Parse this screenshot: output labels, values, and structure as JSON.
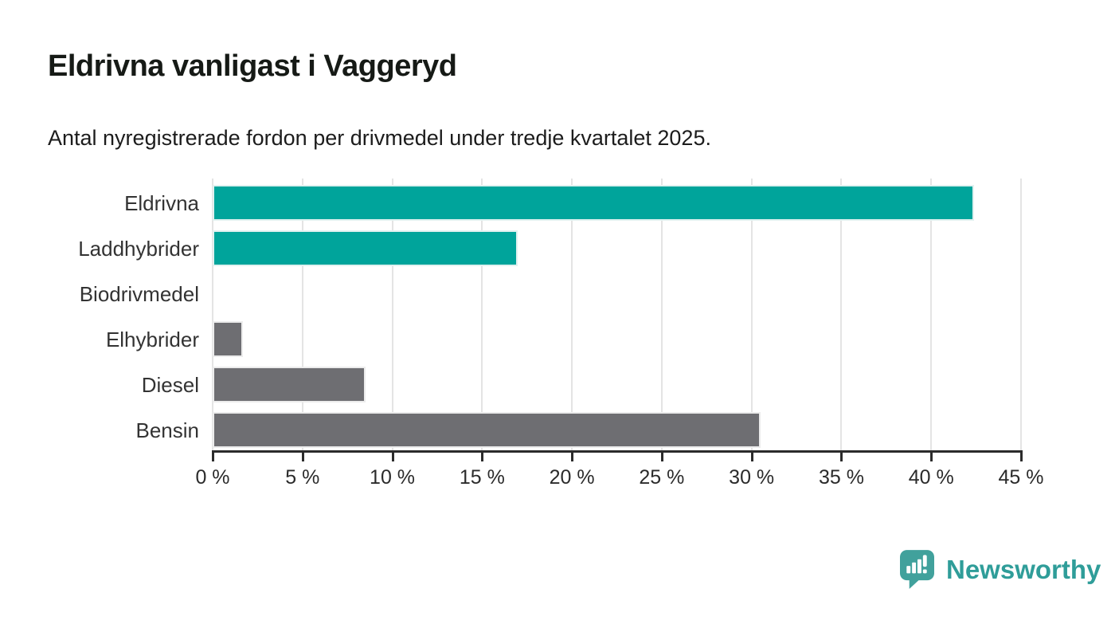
{
  "header": {
    "title": "Eldrivna vanligast i Vaggeryd",
    "subtitle": "Antal nyregistrerade fordon per drivmedel under tredje kvartalet 2025."
  },
  "chart_data": {
    "type": "bar",
    "orientation": "horizontal",
    "title": "Eldrivna vanligast i Vaggeryd",
    "subtitle": "Antal nyregistrerade fordon per drivmedel under tredje kvartalet 2025.",
    "categories": [
      "Eldrivna",
      "Laddhybrider",
      "Biodrivmedel",
      "Elhybrider",
      "Diesel",
      "Bensin"
    ],
    "values": [
      42.4,
      17.0,
      0,
      1.7,
      8.5,
      30.5
    ],
    "unit": "%",
    "bar_colors": [
      "#00a49b",
      "#00a49b",
      "#6e6e72",
      "#6e6e72",
      "#6e6e72",
      "#6e6e72"
    ],
    "xlim": [
      0,
      45
    ],
    "x_ticks": [
      {
        "value": 0,
        "label": "0 %"
      },
      {
        "value": 5,
        "label": "5 %"
      },
      {
        "value": 10,
        "label": "10 %"
      },
      {
        "value": 15,
        "label": "15 %"
      },
      {
        "value": 20,
        "label": "20 %"
      },
      {
        "value": 25,
        "label": "25 %"
      },
      {
        "value": 30,
        "label": "30 %"
      },
      {
        "value": 35,
        "label": "35 %"
      },
      {
        "value": 40,
        "label": "40 %"
      },
      {
        "value": 45,
        "label": "45 %"
      }
    ],
    "grid": true,
    "legend": null,
    "colors": {
      "accent_teal": "#00a49b",
      "neutral_gray": "#6e6e72",
      "gridline": "#e4e4e4",
      "axis": "#2b2b2b",
      "label_text": "#333333"
    }
  },
  "branding": {
    "logo_text": "Newsworthy",
    "logo_text_color": "#2f9d99",
    "logo_icon": "newsworthy-chart-bubble-icon",
    "logo_icon_color": "#41a19c"
  }
}
